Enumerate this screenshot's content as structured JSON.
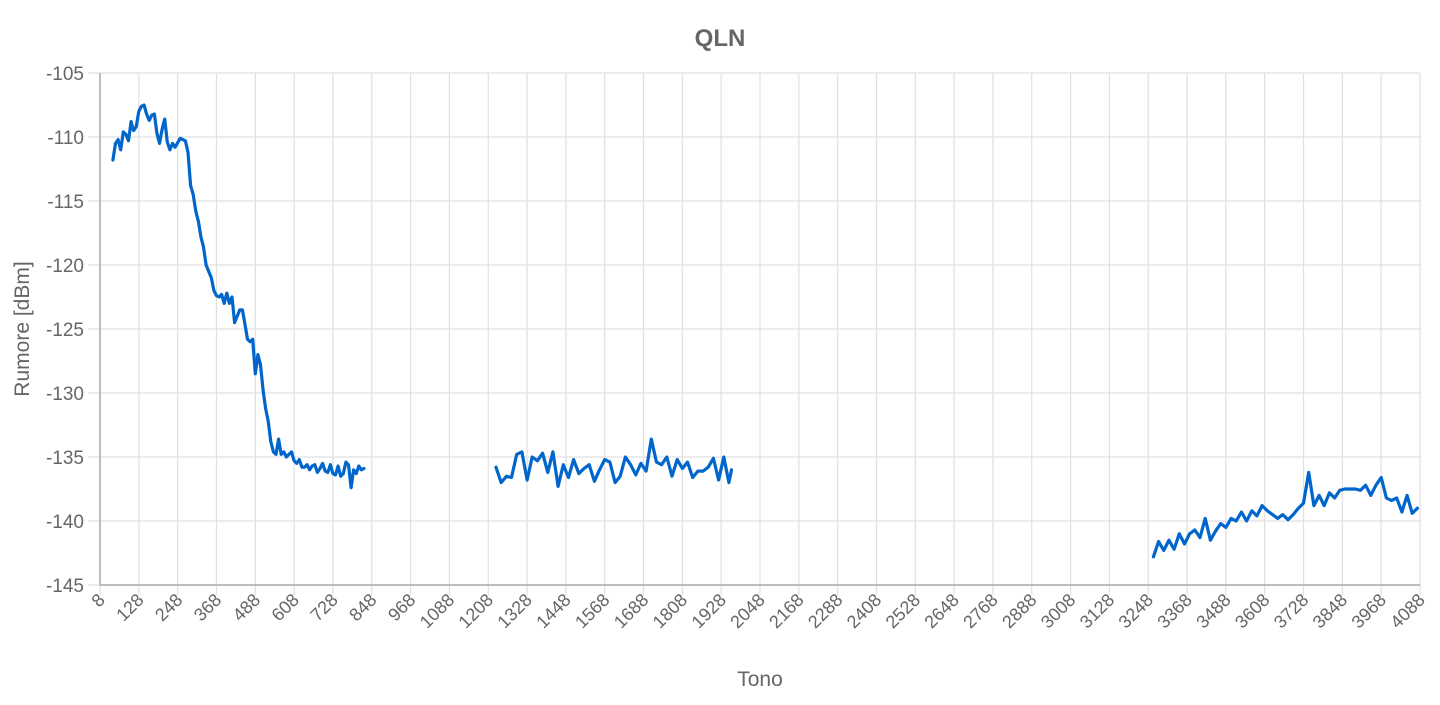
{
  "chart_data": {
    "type": "line",
    "title": "QLN",
    "xlabel": "Tono",
    "ylabel": "Rumore [dBm]",
    "ylim": [
      -145,
      -105
    ],
    "yticks": [
      -105,
      -110,
      -115,
      -120,
      -125,
      -130,
      -135,
      -140,
      -145
    ],
    "xlim": [
      8,
      4088
    ],
    "xticks": [
      8,
      128,
      248,
      368,
      488,
      608,
      728,
      848,
      968,
      1088,
      1208,
      1328,
      1448,
      1568,
      1688,
      1808,
      1928,
      2048,
      2168,
      2288,
      2408,
      2528,
      2648,
      2768,
      2888,
      3008,
      3128,
      3248,
      3368,
      3488,
      3608,
      3728,
      3848,
      3968,
      4088
    ],
    "grid": true,
    "line_color": "#0066cc",
    "segments": [
      [
        [
          48,
          -111.8
        ],
        [
          56,
          -110.5
        ],
        [
          64,
          -110.2
        ],
        [
          72,
          -111
        ],
        [
          80,
          -109.6
        ],
        [
          88,
          -109.8
        ],
        [
          96,
          -110.3
        ],
        [
          104,
          -108.8
        ],
        [
          112,
          -109.5
        ],
        [
          120,
          -109.2
        ],
        [
          128,
          -108
        ],
        [
          136,
          -107.6
        ],
        [
          144,
          -107.5
        ],
        [
          152,
          -108.2
        ],
        [
          160,
          -108.7
        ],
        [
          168,
          -108.3
        ],
        [
          176,
          -108.2
        ],
        [
          184,
          -109.7
        ],
        [
          192,
          -110.5
        ],
        [
          200,
          -109.4
        ],
        [
          208,
          -108.6
        ],
        [
          216,
          -110.4
        ],
        [
          224,
          -111
        ],
        [
          232,
          -110.5
        ],
        [
          240,
          -110.8
        ],
        [
          256,
          -110.1
        ],
        [
          272,
          -110.3
        ],
        [
          280,
          -111.2
        ],
        [
          288,
          -113.8
        ],
        [
          296,
          -114.5
        ],
        [
          304,
          -115.8
        ],
        [
          312,
          -116.6
        ],
        [
          320,
          -117.8
        ],
        [
          328,
          -118.6
        ],
        [
          336,
          -120
        ],
        [
          344,
          -120.5
        ],
        [
          352,
          -121
        ],
        [
          360,
          -122
        ],
        [
          368,
          -122.4
        ],
        [
          376,
          -122.5
        ],
        [
          384,
          -122.3
        ],
        [
          392,
          -123
        ],
        [
          400,
          -122.2
        ],
        [
          408,
          -123
        ],
        [
          416,
          -122.5
        ],
        [
          424,
          -124.5
        ],
        [
          432,
          -124
        ],
        [
          440,
          -123.5
        ],
        [
          448,
          -123.5
        ],
        [
          456,
          -124.6
        ],
        [
          464,
          -125.8
        ],
        [
          472,
          -126
        ],
        [
          480,
          -125.8
        ],
        [
          488,
          -128.5
        ],
        [
          496,
          -127
        ],
        [
          504,
          -127.8
        ],
        [
          512,
          -129.8
        ],
        [
          520,
          -131.2
        ],
        [
          528,
          -132.2
        ],
        [
          536,
          -133.8
        ],
        [
          544,
          -134.6
        ],
        [
          552,
          -134.8
        ],
        [
          560,
          -133.6
        ],
        [
          568,
          -134.8
        ],
        [
          576,
          -134.6
        ],
        [
          584,
          -135
        ],
        [
          592,
          -134.8
        ],
        [
          600,
          -134.6
        ],
        [
          608,
          -135.3
        ],
        [
          616,
          -135.5
        ],
        [
          624,
          -135.2
        ],
        [
          632,
          -135.8
        ],
        [
          640,
          -135.8
        ],
        [
          648,
          -135.6
        ],
        [
          656,
          -136
        ],
        [
          664,
          -135.7
        ],
        [
          672,
          -135.6
        ],
        [
          680,
          -136.2
        ],
        [
          688,
          -135.9
        ],
        [
          696,
          -135.5
        ],
        [
          704,
          -136.1
        ],
        [
          712,
          -136.2
        ],
        [
          720,
          -135.6
        ],
        [
          728,
          -136.3
        ],
        [
          736,
          -136.4
        ],
        [
          744,
          -135.7
        ],
        [
          752,
          -136.5
        ],
        [
          760,
          -136.3
        ],
        [
          768,
          -135.4
        ],
        [
          776,
          -135.6
        ],
        [
          784,
          -137.4
        ],
        [
          792,
          -136
        ],
        [
          800,
          -136.3
        ],
        [
          808,
          -135.7
        ],
        [
          816,
          -136
        ],
        [
          824,
          -135.9
        ]
      ],
      [
        [
          1232,
          -135.8
        ],
        [
          1248,
          -137
        ],
        [
          1264,
          -136.5
        ],
        [
          1280,
          -136.6
        ],
        [
          1296,
          -134.8
        ],
        [
          1312,
          -134.6
        ],
        [
          1328,
          -136.8
        ],
        [
          1344,
          -135
        ],
        [
          1360,
          -135.3
        ],
        [
          1376,
          -134.7
        ],
        [
          1392,
          -136.2
        ],
        [
          1408,
          -134.6
        ],
        [
          1424,
          -137.3
        ],
        [
          1440,
          -135.6
        ],
        [
          1456,
          -136.6
        ],
        [
          1472,
          -135.2
        ],
        [
          1488,
          -136.3
        ],
        [
          1504,
          -135.9
        ],
        [
          1520,
          -135.6
        ],
        [
          1536,
          -136.9
        ],
        [
          1552,
          -136
        ],
        [
          1568,
          -135.2
        ],
        [
          1584,
          -135.4
        ],
        [
          1600,
          -137
        ],
        [
          1616,
          -136.5
        ],
        [
          1632,
          -135
        ],
        [
          1648,
          -135.6
        ],
        [
          1664,
          -136.4
        ],
        [
          1680,
          -135.5
        ],
        [
          1696,
          -136.1
        ],
        [
          1712,
          -133.6
        ],
        [
          1728,
          -135.4
        ],
        [
          1744,
          -135.6
        ],
        [
          1760,
          -135
        ],
        [
          1776,
          -136.5
        ],
        [
          1792,
          -135.2
        ],
        [
          1808,
          -135.9
        ],
        [
          1824,
          -135.4
        ],
        [
          1840,
          -136.6
        ],
        [
          1856,
          -136.1
        ],
        [
          1872,
          -136.1
        ],
        [
          1888,
          -135.8
        ],
        [
          1904,
          -135.1
        ],
        [
          1920,
          -136.8
        ],
        [
          1936,
          -135
        ],
        [
          1952,
          -137
        ],
        [
          1960,
          -136
        ]
      ],
      [
        [
          3264,
          -142.8
        ],
        [
          3280,
          -141.6
        ],
        [
          3296,
          -142.3
        ],
        [
          3312,
          -141.5
        ],
        [
          3328,
          -142.2
        ],
        [
          3344,
          -141
        ],
        [
          3360,
          -141.8
        ],
        [
          3376,
          -141
        ],
        [
          3392,
          -140.7
        ],
        [
          3408,
          -141.3
        ],
        [
          3424,
          -139.8
        ],
        [
          3440,
          -141.5
        ],
        [
          3456,
          -140.8
        ],
        [
          3472,
          -140.2
        ],
        [
          3488,
          -140.5
        ],
        [
          3504,
          -139.8
        ],
        [
          3520,
          -140
        ],
        [
          3536,
          -139.3
        ],
        [
          3552,
          -140
        ],
        [
          3568,
          -139.2
        ],
        [
          3584,
          -139.6
        ],
        [
          3600,
          -138.8
        ],
        [
          3616,
          -139.2
        ],
        [
          3632,
          -139.5
        ],
        [
          3648,
          -139.8
        ],
        [
          3664,
          -139.5
        ],
        [
          3680,
          -139.9
        ],
        [
          3696,
          -139.5
        ],
        [
          3712,
          -139
        ],
        [
          3728,
          -138.6
        ],
        [
          3744,
          -136.2
        ],
        [
          3760,
          -138.8
        ],
        [
          3776,
          -138
        ],
        [
          3792,
          -138.8
        ],
        [
          3808,
          -137.8
        ],
        [
          3824,
          -138.2
        ],
        [
          3840,
          -137.6
        ],
        [
          3856,
          -137.5
        ],
        [
          3872,
          -137.5
        ],
        [
          3888,
          -137.5
        ],
        [
          3904,
          -137.6
        ],
        [
          3920,
          -137.2
        ],
        [
          3936,
          -138
        ],
        [
          3952,
          -137.2
        ],
        [
          3968,
          -136.6
        ],
        [
          3984,
          -138.2
        ],
        [
          4000,
          -138.4
        ],
        [
          4016,
          -138.2
        ],
        [
          4032,
          -139.3
        ],
        [
          4048,
          -138
        ],
        [
          4064,
          -139.4
        ],
        [
          4080,
          -139
        ]
      ]
    ]
  }
}
